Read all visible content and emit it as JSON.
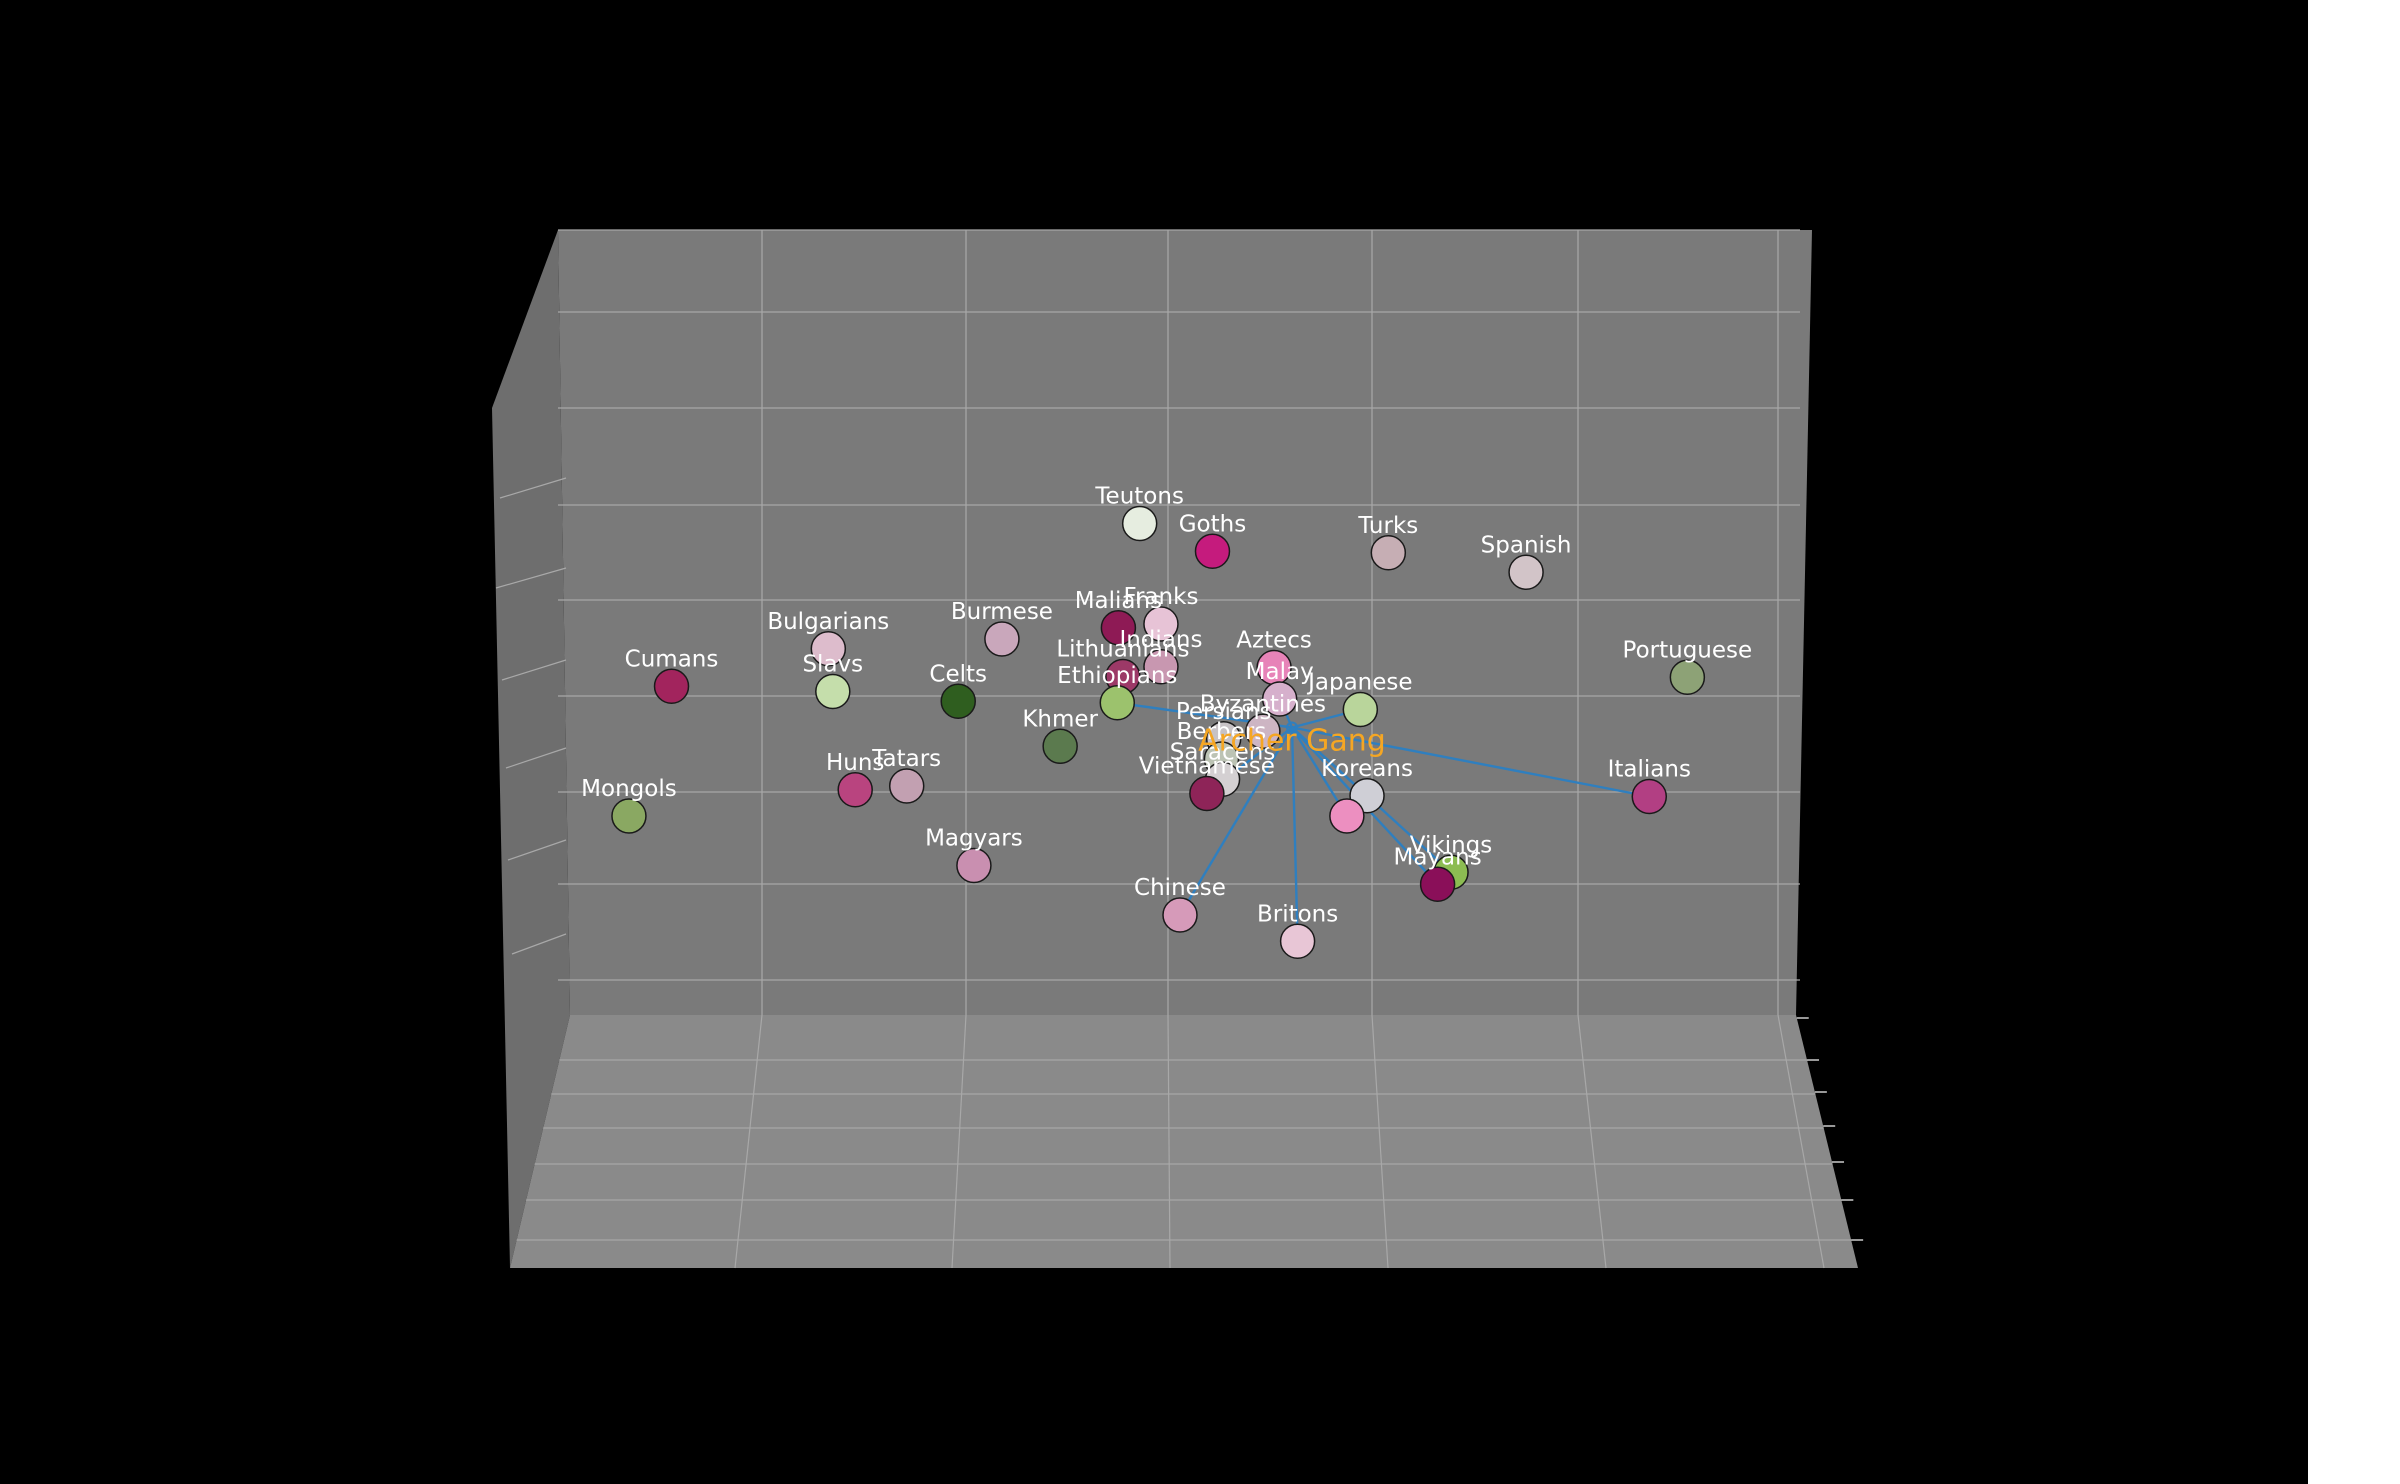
{
  "chart_data": {
    "type": "scatter",
    "projection": "3d",
    "title": "",
    "xlabel": "",
    "ylabel": "",
    "zlabel": "",
    "grid": true,
    "center": {
      "name": "Archer Gang",
      "x": 0.6,
      "y": 0.55,
      "color": "#f5a623"
    },
    "link_color": "#2f7fbf",
    "points": [
      {
        "name": "Teutons",
        "x": 0.464,
        "y": 0.822,
        "color": "#e6ede0"
      },
      {
        "name": "Goths",
        "x": 0.529,
        "y": 0.785,
        "color": "#c51b7d"
      },
      {
        "name": "Turks",
        "x": 0.686,
        "y": 0.783,
        "color": "#c6aeb4"
      },
      {
        "name": "Spanish",
        "x": 0.809,
        "y": 0.757,
        "color": "#d2c4c8"
      },
      {
        "name": "Franks",
        "x": 0.483,
        "y": 0.688,
        "color": "#e7c3d6"
      },
      {
        "name": "Malians",
        "x": 0.445,
        "y": 0.683,
        "color": "#8e1a55"
      },
      {
        "name": "Burmese",
        "x": 0.341,
        "y": 0.668,
        "color": "#c9a7bb"
      },
      {
        "name": "Bulgarians",
        "x": 0.186,
        "y": 0.655,
        "color": "#ddbccc"
      },
      {
        "name": "Indians",
        "x": 0.483,
        "y": 0.631,
        "color": "#c897b0"
      },
      {
        "name": "Aztecs",
        "x": 0.584,
        "y": 0.63,
        "color": "#e783b8"
      },
      {
        "name": "Lithuanians",
        "x": 0.449,
        "y": 0.618,
        "color": "#9c3967"
      },
      {
        "name": "Portuguese",
        "x": 0.953,
        "y": 0.617,
        "color": "#8da276"
      },
      {
        "name": "Cumans",
        "x": 0.046,
        "y": 0.605,
        "color": "#a2245d"
      },
      {
        "name": "Slavs",
        "x": 0.19,
        "y": 0.598,
        "color": "#c5deab"
      },
      {
        "name": "Malay",
        "x": 0.589,
        "y": 0.588,
        "color": "#d6b0cc"
      },
      {
        "name": "Celts",
        "x": 0.302,
        "y": 0.585,
        "color": "#2f5e1f"
      },
      {
        "name": "Ethiopians",
        "x": 0.444,
        "y": 0.583,
        "color": "#9cc26d"
      },
      {
        "name": "Japanese",
        "x": 0.661,
        "y": 0.574,
        "color": "#b9d59b"
      },
      {
        "name": "Byzantines",
        "x": 0.574,
        "y": 0.545,
        "color": "#cdb5c3"
      },
      {
        "name": "Persians",
        "x": 0.539,
        "y": 0.535,
        "color": "#c7c2c5"
      },
      {
        "name": "Khmer",
        "x": 0.393,
        "y": 0.525,
        "color": "#5b7a4e"
      },
      {
        "name": "Berbers",
        "x": 0.537,
        "y": 0.508,
        "color": "#bcc3b4"
      },
      {
        "name": "Saracens",
        "x": 0.538,
        "y": 0.481,
        "color": "#d4d0d2"
      },
      {
        "name": "Tatars",
        "x": 0.256,
        "y": 0.472,
        "color": "#c2a0b1"
      },
      {
        "name": "Huns",
        "x": 0.21,
        "y": 0.467,
        "color": "#b9447f"
      },
      {
        "name": "Vietnamese",
        "x": 0.524,
        "y": 0.462,
        "color": "#8e2458"
      },
      {
        "name": "Koreans",
        "x": 0.667,
        "y": 0.459,
        "color": "#cfcfd6"
      },
      {
        "name": "Italians",
        "x": 0.919,
        "y": 0.458,
        "color": "#b23f83"
      },
      {
        "name": "Mongols",
        "x": 0.008,
        "y": 0.432,
        "color": "#8aa862"
      },
      {
        "name": "Magyars",
        "x": 0.316,
        "y": 0.366,
        "color": "#c98fb0"
      },
      {
        "name": "Vikings",
        "x": 0.742,
        "y": 0.357,
        "color": "#8cbc52"
      },
      {
        "name": "Mayans",
        "x": 0.73,
        "y": 0.341,
        "color": "#8a0f59"
      },
      {
        "name": "Chinese",
        "x": 0.5,
        "y": 0.3,
        "color": "#d69ab9"
      },
      {
        "name": "Britons",
        "x": 0.605,
        "y": 0.265,
        "color": "#e8c6d6"
      },
      {
        "name": "",
        "x": 0.649,
        "y": 0.432,
        "color": "#ec8fc0"
      }
    ],
    "links": [
      "Ethiopians",
      "Malay",
      "Japanese",
      "Vietnamese",
      "Koreans",
      "Italians",
      "Vikings",
      "Mayans",
      "Chinese",
      "Britons",
      ""
    ]
  }
}
